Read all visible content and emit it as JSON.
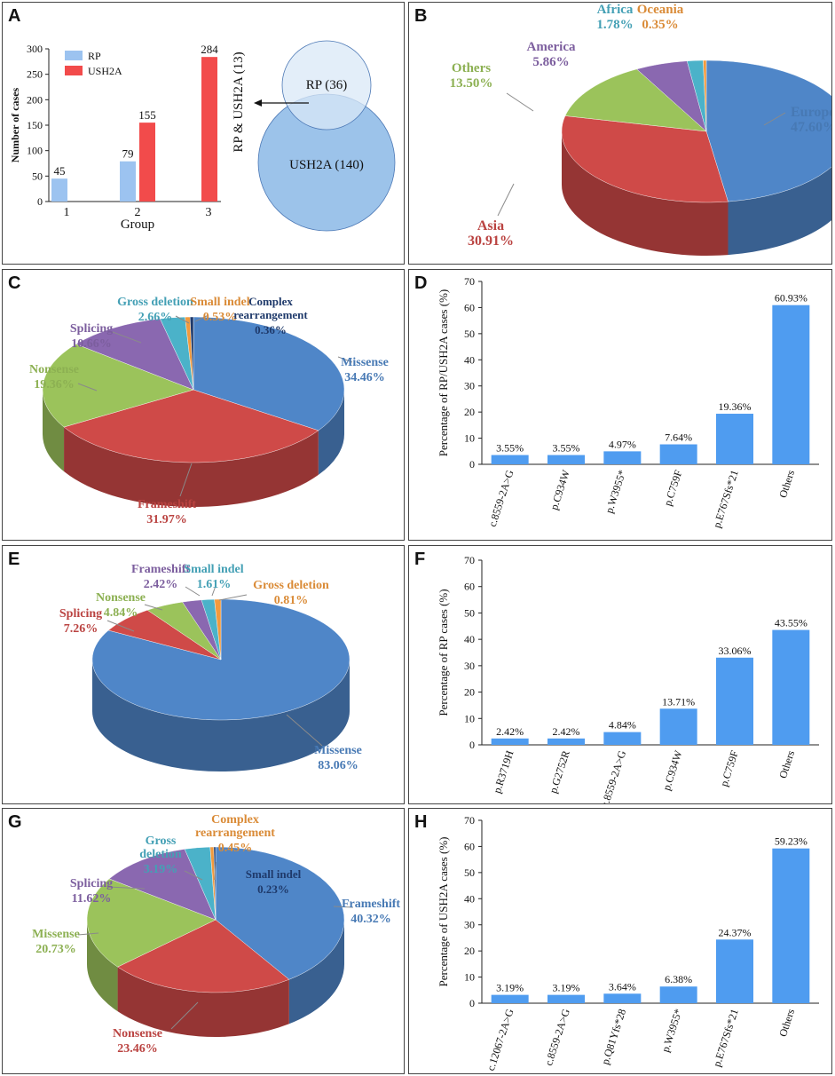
{
  "colors": {
    "rp": "#9cc3f0",
    "ush2a": "#f24b4b",
    "bar": "#4f9cf0",
    "pie_blue": "#4f86c8",
    "pie_red": "#cf4a48",
    "pie_green": "#9bc35b",
    "pie_purple": "#8a68b0",
    "pie_teal": "#4bb2c9",
    "pie_orange": "#f29a3d",
    "pie_navy": "#1f3a6b"
  },
  "panels": {
    "A": {
      "letter": "A"
    },
    "B": {
      "letter": "B"
    },
    "C": {
      "letter": "C"
    },
    "D": {
      "letter": "D"
    },
    "E": {
      "letter": "E"
    },
    "F": {
      "letter": "F"
    },
    "G": {
      "letter": "G"
    },
    "H": {
      "letter": "H"
    }
  },
  "venn": {
    "rp_label": "RP (36)",
    "ush2a_label": "USH2A (140)",
    "overlap_label": "RP & USH2A (13)"
  },
  "chart_data": [
    {
      "id": "A",
      "type": "bar",
      "categories": [
        "1",
        "2",
        "3"
      ],
      "series": [
        {
          "name": "RP",
          "values": [
            45,
            79,
            null
          ]
        },
        {
          "name": "USH2A",
          "values": [
            null,
            155,
            284
          ]
        }
      ],
      "xlabel": "Group",
      "ylabel": "Number of cases",
      "ylim": [
        0,
        300
      ],
      "yticks": [
        0,
        50,
        100,
        150,
        200,
        250,
        300
      ],
      "legend": "top-left"
    },
    {
      "id": "B",
      "type": "pie",
      "slices": [
        {
          "label": "Europe",
          "value": "47.60%",
          "pct": 47.6,
          "color": "pie_blue"
        },
        {
          "label": "Asia",
          "value": "30.91%",
          "pct": 30.91,
          "color": "pie_red"
        },
        {
          "label": "Others",
          "value": "13.50%",
          "pct": 13.5,
          "color": "pie_green"
        },
        {
          "label": "America",
          "value": "5.86%",
          "pct": 5.86,
          "color": "pie_purple"
        },
        {
          "label": "Africa",
          "value": "1.78%",
          "pct": 1.78,
          "color": "pie_teal"
        },
        {
          "label": "Oceania",
          "value": "0.35%",
          "pct": 0.35,
          "color": "pie_orange"
        }
      ]
    },
    {
      "id": "C",
      "type": "pie",
      "slices": [
        {
          "label": "Missense",
          "value": "34.46%",
          "pct": 34.46,
          "color": "pie_blue"
        },
        {
          "label": "Frameshift",
          "value": "31.97%",
          "pct": 31.97,
          "color": "pie_red"
        },
        {
          "label": "Nonsense",
          "value": "19.36%",
          "pct": 19.36,
          "color": "pie_green"
        },
        {
          "label": "Splicing",
          "value": "10.66%",
          "pct": 10.66,
          "color": "pie_purple"
        },
        {
          "label": "Gross deletion",
          "value": "2.66%",
          "pct": 2.66,
          "color": "pie_teal"
        },
        {
          "label": "Small indel",
          "value": "0.53%",
          "pct": 0.53,
          "color": "pie_orange"
        },
        {
          "label": "Complex\nrearrangement",
          "value": "0.36%",
          "pct": 0.36,
          "color": "pie_navy"
        }
      ]
    },
    {
      "id": "D",
      "type": "bar",
      "categories": [
        "c.8559-2A>G",
        "p.C934W",
        "p.W3955*",
        "p.C759F",
        "p.E767Sfs*21",
        "Others"
      ],
      "values": [
        3.55,
        3.55,
        4.97,
        7.64,
        19.36,
        60.93
      ],
      "value_labels": [
        "3.55%",
        "3.55%",
        "4.97%",
        "7.64%",
        "19.36%",
        "60.93%"
      ],
      "ylabel": "Percentage of RP/USH2A cases (%)",
      "ylim": [
        0,
        70
      ],
      "yticks": [
        0,
        10,
        20,
        30,
        40,
        50,
        60,
        70
      ]
    },
    {
      "id": "E",
      "type": "pie",
      "slices": [
        {
          "label": "Missense",
          "value": "83.06%",
          "pct": 83.06,
          "color": "pie_blue"
        },
        {
          "label": "Splicing",
          "value": "7.26%",
          "pct": 7.26,
          "color": "pie_red"
        },
        {
          "label": "Nonsense",
          "value": "4.84%",
          "pct": 4.84,
          "color": "pie_green"
        },
        {
          "label": "Frameshift",
          "value": "2.42%",
          "pct": 2.42,
          "color": "pie_purple"
        },
        {
          "label": "Small indel",
          "value": "1.61%",
          "pct": 1.61,
          "color": "pie_teal"
        },
        {
          "label": "Gross deletion",
          "value": "0.81%",
          "pct": 0.81,
          "color": "pie_orange"
        }
      ]
    },
    {
      "id": "F",
      "type": "bar",
      "categories": [
        "p.R3719H",
        "p.G2752R",
        "c.8559-2A>G",
        "p.C934W",
        "p.C759F",
        "Others"
      ],
      "values": [
        2.42,
        2.42,
        4.84,
        13.71,
        33.06,
        43.55
      ],
      "value_labels": [
        "2.42%",
        "2.42%",
        "4.84%",
        "13.71%",
        "33.06%",
        "43.55%"
      ],
      "ylabel": "Percentage of RP cases (%)",
      "ylim": [
        0,
        70
      ],
      "yticks": [
        0,
        10,
        20,
        30,
        40,
        50,
        60,
        70
      ]
    },
    {
      "id": "G",
      "type": "pie",
      "slices": [
        {
          "label": "Frameshift",
          "value": "40.32%",
          "pct": 40.32,
          "color": "pie_blue"
        },
        {
          "label": "Nonsense",
          "value": "23.46%",
          "pct": 23.46,
          "color": "pie_red"
        },
        {
          "label": "Missense",
          "value": "20.73%",
          "pct": 20.73,
          "color": "pie_green"
        },
        {
          "label": "Splicing",
          "value": "11.62%",
          "pct": 11.62,
          "color": "pie_purple"
        },
        {
          "label": "Gross\ndeletion",
          "value": "3.19%",
          "pct": 3.19,
          "color": "pie_teal"
        },
        {
          "label": "Complex\nrearrangement",
          "value": "0.45%",
          "pct": 0.45,
          "color": "pie_orange"
        },
        {
          "label": "Small indel",
          "value": "0.23%",
          "pct": 0.23,
          "color": "pie_navy"
        }
      ]
    },
    {
      "id": "H",
      "type": "bar",
      "categories": [
        "c.12067-2A>G",
        "c.8559-2A>G",
        "p.Q81Yfs*28",
        "p.W3955*",
        "p.E767Sfs*21",
        "Others"
      ],
      "values": [
        3.19,
        3.19,
        3.64,
        6.38,
        24.37,
        59.23
      ],
      "value_labels": [
        "3.19%",
        "3.19%",
        "3.64%",
        "6.38%",
        "24.37%",
        "59.23%"
      ],
      "ylabel": "Percentage of USH2A cases (%)",
      "ylim": [
        0,
        70
      ],
      "yticks": [
        0,
        10,
        20,
        30,
        40,
        50,
        60,
        70
      ]
    }
  ]
}
